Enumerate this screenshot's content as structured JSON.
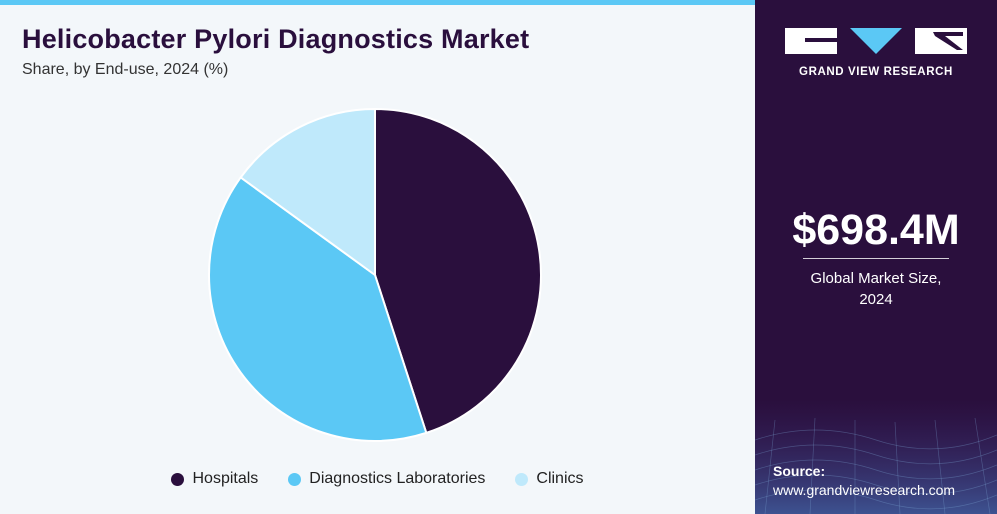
{
  "header": {
    "title": "Helicobacter Pylori Diagnostics Market",
    "subtitle": "Share, by End-use, 2024 (%)"
  },
  "chart_data": {
    "type": "pie",
    "title": "Helicobacter Pylori Diagnostics Market",
    "subtitle": "Share, by End-use, 2024 (%)",
    "categories": [
      "Hospitals",
      "Diagnostics Laboratories",
      "Clinics"
    ],
    "values": [
      45,
      40,
      15
    ],
    "colors": [
      "#2a0f3d",
      "#5bc8f5",
      "#bfe9fb"
    ],
    "legend_position": "bottom"
  },
  "sidebar": {
    "brand": "GRAND VIEW RESEARCH",
    "market_value": "$698.4M",
    "market_caption_line1": "Global Market Size,",
    "market_caption_line2": "2024",
    "source_label": "Source:",
    "source_url": "www.grandviewresearch.com"
  },
  "theme": {
    "accent": "#5bc8f5",
    "sidebar_bg": "#2a0f3d"
  }
}
